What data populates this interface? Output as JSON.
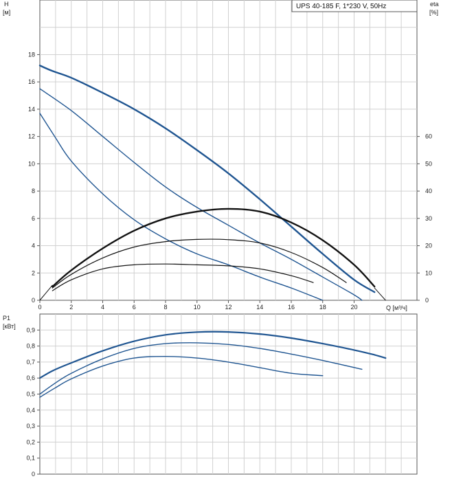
{
  "legend": "UPS 40-185 F, 1*230 V, 50Hz",
  "colors": {
    "blue": "#1f5591",
    "black": "#111111",
    "grid": "#d0d0d0"
  },
  "chart_data": [
    {
      "type": "line",
      "panel": "head-eta",
      "y_left": {
        "label_top": "H",
        "label_bottom": "[м]",
        "ticks": [
          0,
          2,
          4,
          6,
          8,
          10,
          12,
          14,
          16,
          18
        ],
        "lim": [
          0,
          22
        ]
      },
      "y_right": {
        "label_top": "eta",
        "label_bottom": "[%]",
        "ticks": [
          0,
          10,
          20,
          30,
          40,
          50,
          60
        ],
        "lim": [
          0,
          110
        ]
      },
      "x": {
        "label": "Q [м³/ч]",
        "ticks": [
          0,
          2,
          4,
          6,
          8,
          10,
          12,
          14,
          16,
          18,
          20
        ],
        "lim": [
          0,
          24
        ]
      },
      "grid": true,
      "series": [
        {
          "axis": "left",
          "color": "blue",
          "width": 2.4,
          "points": [
            [
              0,
              17.2
            ],
            [
              0.8,
              16.8
            ],
            [
              2,
              16.3
            ],
            [
              4,
              15.2
            ],
            [
              6,
              14.0
            ],
            [
              8,
              12.6
            ],
            [
              10,
              11.0
            ],
            [
              12,
              9.3
            ],
            [
              14,
              7.4
            ],
            [
              16,
              5.4
            ],
            [
              18,
              3.4
            ],
            [
              20,
              1.5
            ],
            [
              21.3,
              0.6
            ]
          ]
        },
        {
          "axis": "left",
          "color": "blue",
          "width": 1.4,
          "points": [
            [
              0,
              15.5
            ],
            [
              2,
              13.9
            ],
            [
              4,
              12.0
            ],
            [
              6,
              10.1
            ],
            [
              8,
              8.3
            ],
            [
              10,
              6.8
            ],
            [
              12,
              5.5
            ],
            [
              14,
              4.2
            ],
            [
              16,
              3.0
            ],
            [
              18,
              1.7
            ],
            [
              20,
              0.4
            ],
            [
              20.5,
              0
            ]
          ]
        },
        {
          "axis": "left",
          "color": "blue",
          "width": 1.4,
          "points": [
            [
              0,
              13.7
            ],
            [
              1,
              11.9
            ],
            [
              2,
              10.2
            ],
            [
              4,
              7.8
            ],
            [
              6,
              5.9
            ],
            [
              8,
              4.5
            ],
            [
              10,
              3.4
            ],
            [
              12,
              2.6
            ],
            [
              14,
              1.7
            ],
            [
              16,
              0.9
            ],
            [
              18,
              0
            ]
          ]
        },
        {
          "axis": "right",
          "color": "black",
          "width": 2.4,
          "points": [
            [
              0.8,
              5
            ],
            [
              2,
              11
            ],
            [
              4,
              19
            ],
            [
              6,
              25.5
            ],
            [
              8,
              30
            ],
            [
              10,
              32.5
            ],
            [
              12,
              33.5
            ],
            [
              14,
              32.5
            ],
            [
              16,
              28.5
            ],
            [
              18,
              22
            ],
            [
              20,
              13
            ],
            [
              21.3,
              5
            ]
          ]
        },
        {
          "axis": "right",
          "color": "black",
          "width": 1.2,
          "points": [
            [
              0.8,
              4.5
            ],
            [
              2,
              9.5
            ],
            [
              4,
              15.5
            ],
            [
              6,
              19.5
            ],
            [
              8,
              21.5
            ],
            [
              10,
              22.3
            ],
            [
              12,
              22.2
            ],
            [
              14,
              21
            ],
            [
              16,
              17.5
            ],
            [
              18,
              12
            ],
            [
              19.5,
              6.5
            ]
          ]
        },
        {
          "axis": "right",
          "color": "black",
          "width": 1.2,
          "points": [
            [
              0.8,
              3.5
            ],
            [
              2,
              7.5
            ],
            [
              4,
              11.5
            ],
            [
              6,
              13
            ],
            [
              8,
              13.3
            ],
            [
              10,
              13
            ],
            [
              12,
              12.6
            ],
            [
              14,
              11.5
            ],
            [
              16,
              9
            ],
            [
              17.4,
              6.5
            ]
          ]
        },
        {
          "axis": "left",
          "color": "black",
          "width": 1.0,
          "points": [
            [
              0,
              0
            ],
            [
              0.8,
              1.1
            ]
          ]
        },
        {
          "axis": "left",
          "color": "black",
          "width": 1.0,
          "points": [
            [
              21.3,
              0.9
            ],
            [
              22,
              0
            ]
          ]
        }
      ]
    },
    {
      "type": "line",
      "panel": "power",
      "y_left": {
        "label_top": "P1",
        "label_bottom": "[кВт]",
        "ticks": [
          "0",
          "0,1",
          "0,2",
          "0,3",
          "0,4",
          "0,5",
          "0,6",
          "0,7",
          "0,8",
          "0,9"
        ],
        "lim": [
          0,
          1.0
        ]
      },
      "x": {
        "ticks": [
          0,
          2,
          4,
          6,
          8,
          10,
          12,
          14,
          16,
          18,
          20
        ],
        "lim": [
          0,
          24
        ]
      },
      "grid": true,
      "series": [
        {
          "color": "blue",
          "width": 2.2,
          "points": [
            [
              0,
              0.6
            ],
            [
              0.8,
              0.645
            ],
            [
              2,
              0.695
            ],
            [
              4,
              0.77
            ],
            [
              6,
              0.83
            ],
            [
              8,
              0.87
            ],
            [
              10,
              0.887
            ],
            [
              12,
              0.888
            ],
            [
              14,
              0.875
            ],
            [
              16,
              0.85
            ],
            [
              18,
              0.815
            ],
            [
              20,
              0.775
            ],
            [
              21.3,
              0.745
            ],
            [
              22,
              0.725
            ]
          ]
        },
        {
          "color": "blue",
          "width": 1.4,
          "points": [
            [
              0,
              0.5
            ],
            [
              1,
              0.57
            ],
            [
              2,
              0.63
            ],
            [
              4,
              0.72
            ],
            [
              6,
              0.785
            ],
            [
              8,
              0.815
            ],
            [
              10,
              0.82
            ],
            [
              12,
              0.81
            ],
            [
              14,
              0.785
            ],
            [
              16,
              0.75
            ],
            [
              18,
              0.71
            ],
            [
              20.5,
              0.655
            ]
          ]
        },
        {
          "color": "blue",
          "width": 1.4,
          "points": [
            [
              0,
              0.48
            ],
            [
              1,
              0.54
            ],
            [
              2,
              0.595
            ],
            [
              4,
              0.675
            ],
            [
              6,
              0.725
            ],
            [
              8,
              0.735
            ],
            [
              10,
              0.725
            ],
            [
              12,
              0.7
            ],
            [
              14,
              0.665
            ],
            [
              16,
              0.63
            ],
            [
              18,
              0.615
            ]
          ]
        }
      ]
    }
  ]
}
